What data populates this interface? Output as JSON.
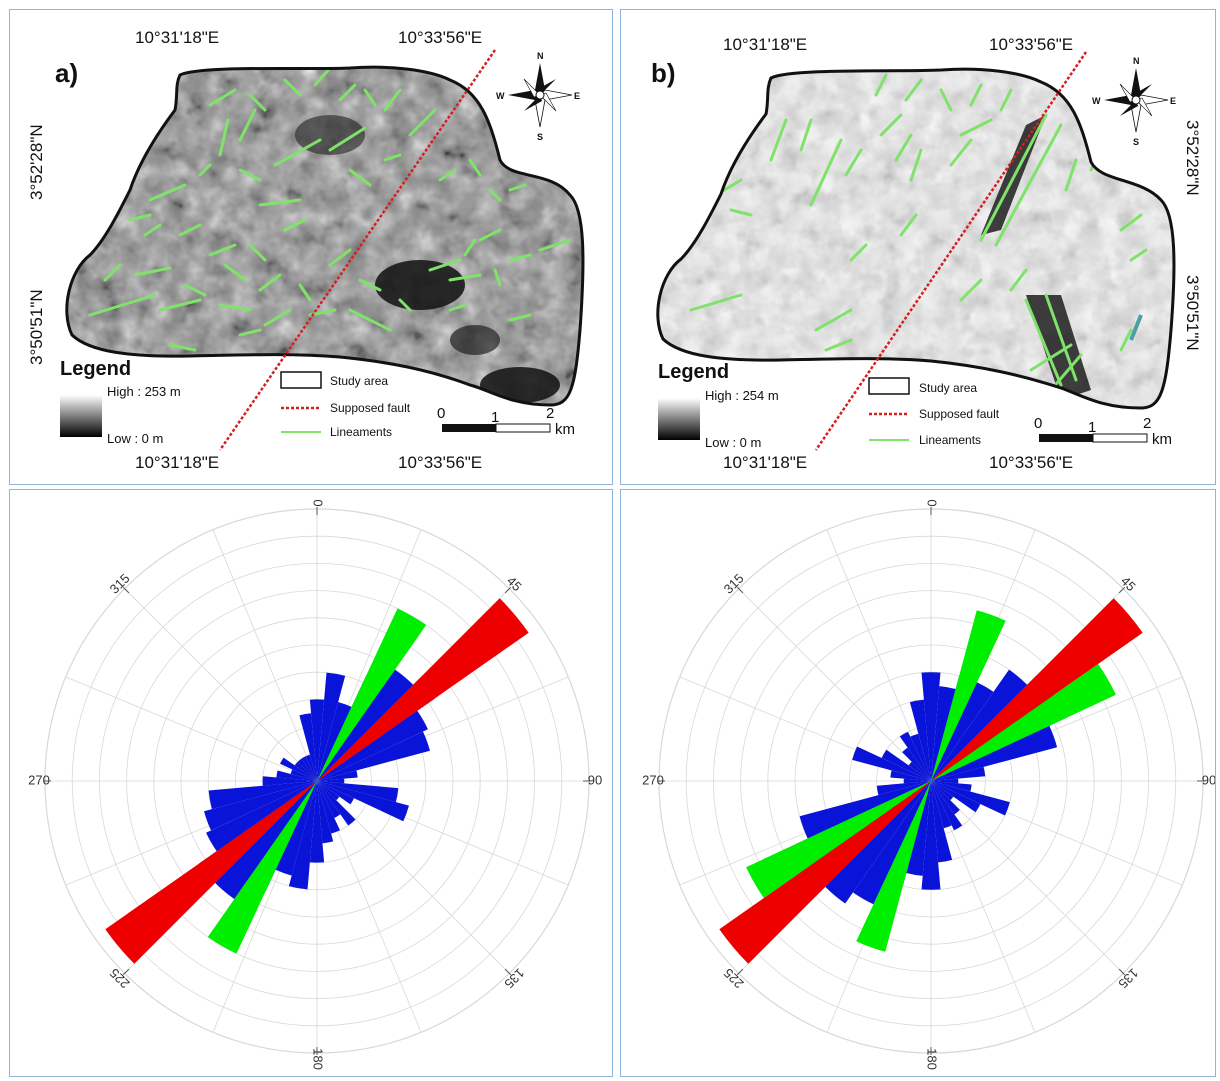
{
  "maps": [
    {
      "letter": "a)",
      "top_left_lon": "10°31'18\"E",
      "top_right_lon": "10°33'56\"E",
      "bottom_left_lon": "10°31'18\"E",
      "bottom_right_lon": "10°33'56\"E",
      "upper_lat": "3°52'28\"N",
      "lower_lat": "3°50'51\"N",
      "legend_title": "Legend",
      "high_label": "High : 253 m",
      "low_label": "Low : 0 m",
      "study_area_label": "Study area",
      "fault_label": "Supposed fault",
      "lineaments_label": "Lineaments",
      "scale_0": "0",
      "scale_1": "1",
      "scale_2": "2",
      "scale_unit": "km",
      "compass": {
        "n": "N",
        "s": "S",
        "e": "E",
        "w": "W"
      }
    },
    {
      "letter": "b)",
      "top_left_lon": "10°31'18\"E",
      "top_right_lon": "10°33'56\"E",
      "bottom_left_lon": "10°31'18\"E",
      "bottom_right_lon": "10°33'56\"E",
      "upper_lat": "3°52'28\"N",
      "lower_lat": "3°50'51\"N",
      "legend_title": "Legend",
      "high_label": "High : 254 m",
      "low_label": "Low : 0 m",
      "study_area_label": "Study area",
      "fault_label": "Supposed fault",
      "lineaments_label": "Lineaments",
      "scale_0": "0",
      "scale_1": "1",
      "scale_2": "2",
      "scale_unit": "km",
      "compass": {
        "n": "N",
        "s": "S",
        "e": "E",
        "w": "W"
      }
    }
  ],
  "colors": {
    "lineament": "#7fe36a",
    "fault": "#d62020",
    "blue_rose": "#0a14d8",
    "green_rose": "#00ee00",
    "red_rose": "#ee0000",
    "panel_border": "#8fb4d8"
  },
  "chart_data": [
    {
      "type": "rose",
      "angle_labels": [
        "0",
        "45",
        "90",
        "135",
        "180",
        "225",
        "270",
        "315"
      ],
      "bin_width_deg": 10,
      "max_radius": 10,
      "rings": 10,
      "series": [
        {
          "color": "#0a14d8",
          "bins": [
            {
              "a": 0,
              "r": 3
            },
            {
              "a": 10,
              "r": 4
            },
            {
              "a": 20,
              "r": 3
            },
            {
              "a": 30,
              "r": 4.3
            },
            {
              "a": 40,
              "r": 5
            },
            {
              "a": 50,
              "r": 5.3
            },
            {
              "a": 60,
              "r": 4.5
            },
            {
              "a": 70,
              "r": 4.3
            },
            {
              "a": 80,
              "r": 1.5
            },
            {
              "a": 90,
              "r": 1
            },
            {
              "a": 100,
              "r": 3
            },
            {
              "a": 110,
              "r": 3.5
            },
            {
              "a": 120,
              "r": 1.5
            },
            {
              "a": 130,
              "r": 1
            },
            {
              "a": 140,
              "r": 2
            },
            {
              "a": 150,
              "r": 1.5
            },
            {
              "a": 160,
              "r": 2
            },
            {
              "a": 170,
              "r": 2.3
            },
            {
              "a": 180,
              "r": 3
            },
            {
              "a": 190,
              "r": 4
            },
            {
              "a": 200,
              "r": 3.6
            },
            {
              "a": 210,
              "r": 4.5
            },
            {
              "a": 220,
              "r": 5.3
            },
            {
              "a": 230,
              "r": 5.3
            },
            {
              "a": 240,
              "r": 4.5
            },
            {
              "a": 250,
              "r": 4.3
            },
            {
              "a": 260,
              "r": 4
            },
            {
              "a": 270,
              "r": 2
            },
            {
              "a": 280,
              "r": 1.5
            },
            {
              "a": 290,
              "r": 1
            },
            {
              "a": 300,
              "r": 1.5
            },
            {
              "a": 310,
              "r": 1
            },
            {
              "a": 320,
              "r": 1
            },
            {
              "a": 330,
              "r": 1
            },
            {
              "a": 340,
              "r": 1
            },
            {
              "a": 350,
              "r": 2.5
            }
          ]
        },
        {
          "color": "#00ee00",
          "bins": [
            {
              "a": 30,
              "r": 7
            },
            {
              "a": 210,
              "r": 7
            }
          ]
        },
        {
          "color": "#ee0000",
          "bins": [
            {
              "a": 50,
              "r": 9.5
            },
            {
              "a": 230,
              "r": 9.5
            }
          ]
        }
      ]
    },
    {
      "type": "rose",
      "angle_labels": [
        "0",
        "45",
        "90",
        "135",
        "180",
        "225",
        "270",
        "315"
      ],
      "bin_width_deg": 10,
      "max_radius": 10,
      "rings": 10,
      "series": [
        {
          "color": "#0a14d8",
          "bins": [
            {
              "a": 0,
              "r": 4
            },
            {
              "a": 10,
              "r": 3.5
            },
            {
              "a": 20,
              "r": 4
            },
            {
              "a": 30,
              "r": 4
            },
            {
              "a": 40,
              "r": 5
            },
            {
              "a": 50,
              "r": 5.5
            },
            {
              "a": 60,
              "r": 5.5
            },
            {
              "a": 70,
              "r": 4.8
            },
            {
              "a": 80,
              "r": 2
            },
            {
              "a": 90,
              "r": 1
            },
            {
              "a": 100,
              "r": 1.5
            },
            {
              "a": 110,
              "r": 3
            },
            {
              "a": 120,
              "r": 2
            },
            {
              "a": 130,
              "r": 1
            },
            {
              "a": 140,
              "r": 1.5
            },
            {
              "a": 150,
              "r": 2
            },
            {
              "a": 160,
              "r": 1.8
            },
            {
              "a": 170,
              "r": 3
            },
            {
              "a": 180,
              "r": 4
            },
            {
              "a": 190,
              "r": 3.5
            },
            {
              "a": 200,
              "r": 4
            },
            {
              "a": 210,
              "r": 5
            },
            {
              "a": 220,
              "r": 5.5
            },
            {
              "a": 230,
              "r": 6
            },
            {
              "a": 240,
              "r": 5.5
            },
            {
              "a": 250,
              "r": 5
            },
            {
              "a": 260,
              "r": 2
            },
            {
              "a": 270,
              "r": 1
            },
            {
              "a": 280,
              "r": 1.5
            },
            {
              "a": 290,
              "r": 3
            },
            {
              "a": 300,
              "r": 2
            },
            {
              "a": 310,
              "r": 1
            },
            {
              "a": 320,
              "r": 1.5
            },
            {
              "a": 330,
              "r": 2
            },
            {
              "a": 340,
              "r": 1.8
            },
            {
              "a": 350,
              "r": 3
            }
          ]
        },
        {
          "color": "#00ee00",
          "bins": [
            {
              "a": 20,
              "r": 6.5
            },
            {
              "a": 60,
              "r": 7.5
            },
            {
              "a": 200,
              "r": 6.5
            },
            {
              "a": 240,
              "r": 7.5
            }
          ]
        },
        {
          "color": "#ee0000",
          "bins": [
            {
              "a": 50,
              "r": 9.5
            },
            {
              "a": 230,
              "r": 9.5
            }
          ]
        }
      ]
    }
  ]
}
